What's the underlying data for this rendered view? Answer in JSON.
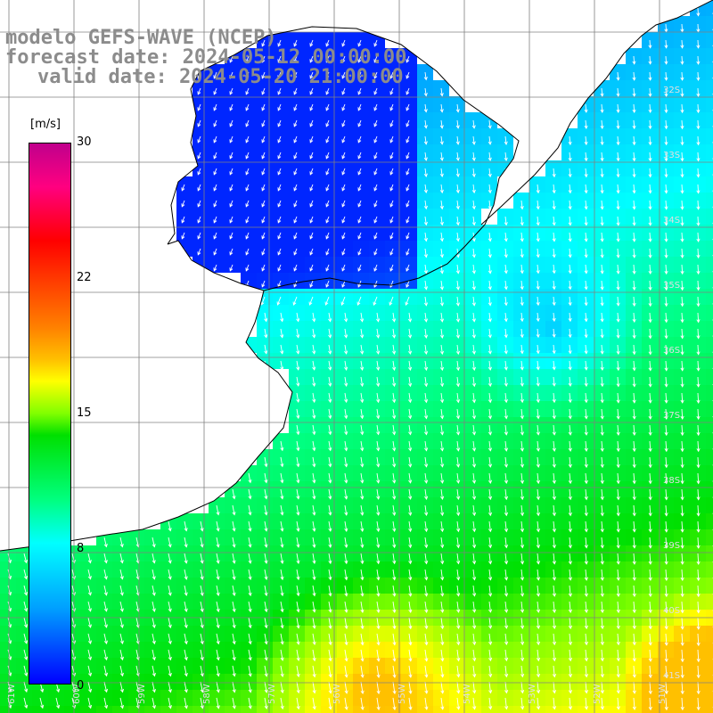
{
  "title": {
    "line1": "modelo GEFS-WAVE (NCEP)",
    "line2": "forecast date: 2024-05-12 00:00:00",
    "line3": "valid date: 2024-05-20 21:00:00"
  },
  "colorbar": {
    "units": "[m/s]",
    "ticks": [
      "30",
      "22",
      "15",
      "8",
      "0"
    ],
    "range": [
      0,
      30
    ]
  },
  "map_labels": {
    "latitudes": [
      "32S",
      "33S",
      "34S",
      "35S",
      "36S",
      "37S",
      "38S",
      "39S",
      "40S",
      "41S"
    ],
    "longitudes": [
      "61W",
      "60W",
      "59W",
      "58W",
      "57W",
      "56W",
      "55W",
      "54W",
      "53W",
      "52W",
      "51W"
    ]
  },
  "field": {
    "variable": "wind speed and direction",
    "arrow_color": "#ffffff",
    "land_color": "#ffffff",
    "grid_color": "#808080",
    "coast_color": "#000000"
  }
}
